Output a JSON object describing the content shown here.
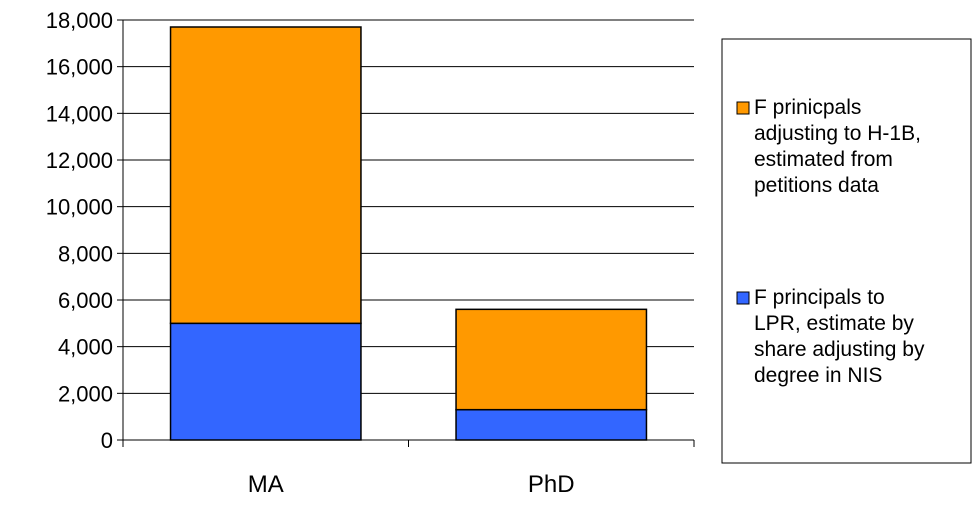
{
  "chart_data": {
    "type": "bar",
    "stacked": true,
    "categories": [
      "MA",
      "PhD"
    ],
    "series": [
      {
        "name": "F principals to LPR, estimate by share adjusting by degree in NIS",
        "legend_lines": [
          "F principals to",
          "LPR, estimate by",
          "share adjusting by",
          "degree in NIS"
        ],
        "color": "#3366FF",
        "values": [
          5000,
          1300
        ]
      },
      {
        "name": "F prinicpals adjusting to H-1B, estimated from petitions data",
        "legend_lines": [
          "F prinicpals",
          "adjusting to H-1B,",
          "estimated from",
          "petitions data"
        ],
        "color": "#FF9900",
        "values": [
          12700,
          4300
        ]
      }
    ],
    "ylim": [
      0,
      18000
    ],
    "yticks": [
      0,
      2000,
      4000,
      6000,
      8000,
      10000,
      12000,
      14000,
      16000,
      18000
    ],
    "ytick_labels": [
      "0",
      "2,000",
      "4,000",
      "6,000",
      "8,000",
      "10,000",
      "12,000",
      "14,000",
      "16,000",
      "18,000"
    ],
    "title": "",
    "xlabel": "",
    "ylabel": "",
    "grid": true,
    "legend_position": "right"
  }
}
